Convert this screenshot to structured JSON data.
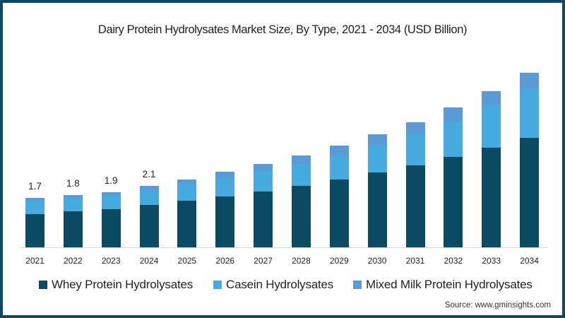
{
  "title": "Dairy Protein Hydrolysates Market Size, By Type, 2021 - 2034 (USD Billion)",
  "source": "Source: www.gminsights.com",
  "colors": {
    "frame": "#0d4a63",
    "whey": "#0b4a63",
    "casein": "#47abdf",
    "mixed": "#5b9bd5"
  },
  "legend": [
    {
      "label": "Whey Protein Hydrolysates",
      "color": "#0b4a63"
    },
    {
      "label": "Casein Hydrolysates",
      "color": "#47abdf"
    },
    {
      "label": "Mixed Milk Protein Hydrolysates",
      "color": "#5b9bd5"
    }
  ],
  "chart_data": {
    "type": "bar",
    "stacked": true,
    "title": "Dairy Protein Hydrolysates Market Size, By Type, 2021 - 2034 (USD Billion)",
    "xlabel": "",
    "ylabel": "USD Billion",
    "grid": false,
    "legend_position": "bottom",
    "categories": [
      "2021",
      "2022",
      "2023",
      "2024",
      "2025",
      "2026",
      "2027",
      "2028",
      "2029",
      "2030",
      "2031",
      "2032",
      "2033",
      "2034"
    ],
    "series": [
      {
        "name": "Whey Protein Hydrolysates",
        "values": [
          1.14,
          1.24,
          1.31,
          1.45,
          1.6,
          1.75,
          1.92,
          2.11,
          2.33,
          2.57,
          2.82,
          3.11,
          3.42,
          3.76
        ]
      },
      {
        "name": "Casein Hydrolysates",
        "values": [
          0.44,
          0.43,
          0.45,
          0.49,
          0.55,
          0.63,
          0.69,
          0.75,
          0.83,
          0.92,
          1.07,
          1.21,
          1.46,
          1.67
        ]
      },
      {
        "name": "Mixed Milk Protein Hydrolysates",
        "values": [
          0.12,
          0.13,
          0.14,
          0.16,
          0.18,
          0.22,
          0.25,
          0.29,
          0.34,
          0.39,
          0.41,
          0.49,
          0.49,
          0.56
        ]
      }
    ],
    "data_labels": {
      "2021": "1.7",
      "2022": "1.8",
      "2023": "1.9",
      "2024": "2.1"
    }
  }
}
